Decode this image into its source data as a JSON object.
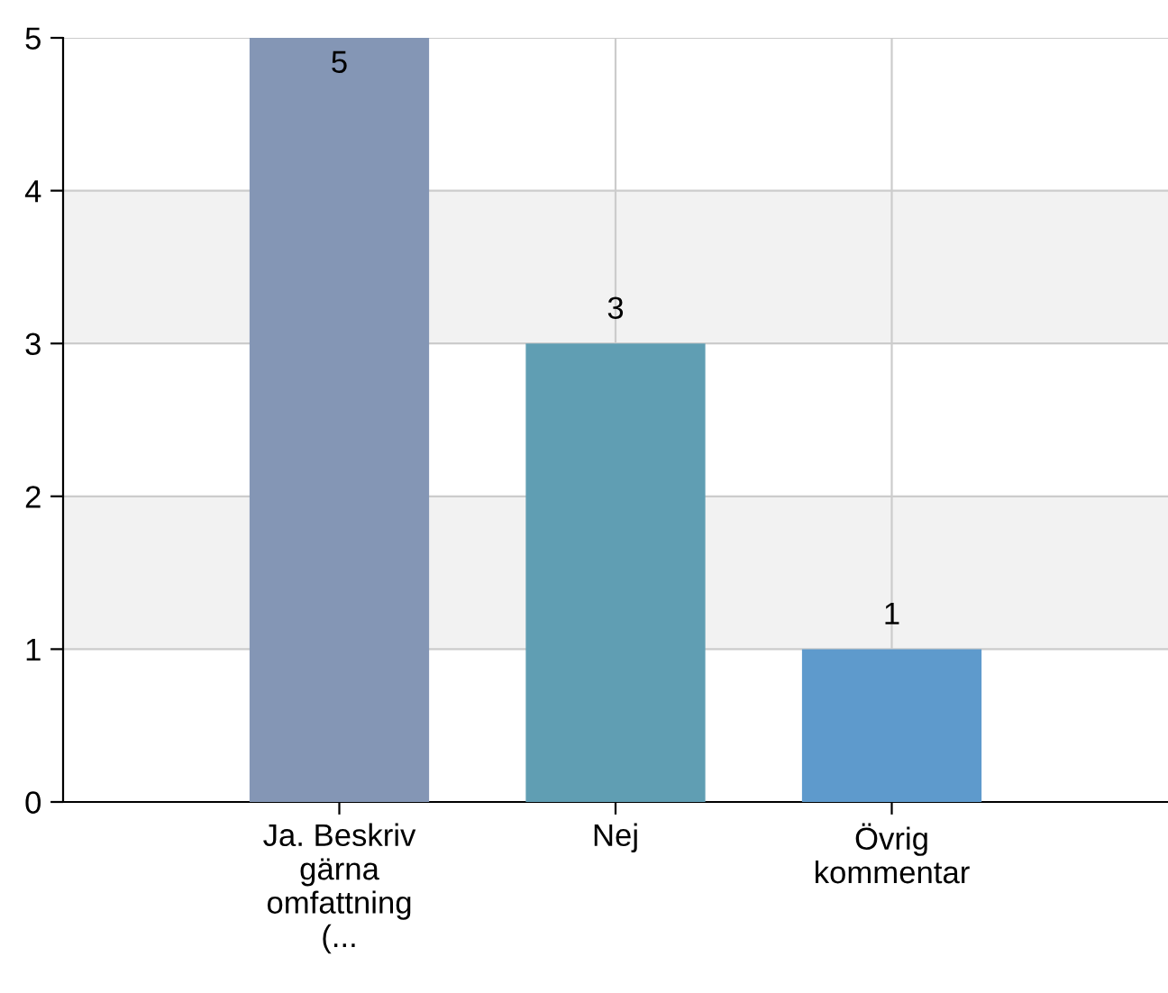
{
  "chart_data": {
    "type": "bar",
    "categories": [
      "Ja. Beskriv\ngärna\nomfattning\n(...",
      "Nej",
      "Övrig\nkommentar"
    ],
    "values": [
      5,
      3,
      1
    ],
    "colors": [
      "#8496b5",
      "#609eb3",
      "#5e9acc"
    ],
    "ylim": [
      0,
      5
    ],
    "yticks": [
      0,
      1,
      2,
      3,
      4,
      5
    ],
    "bands": [
      {
        "axis": "y",
        "from": 1,
        "to": 2,
        "color": "#f2f2f2"
      },
      {
        "axis": "y",
        "from": 3,
        "to": 4,
        "color": "#f2f2f2"
      }
    ],
    "grid": true,
    "data_labels": true
  }
}
